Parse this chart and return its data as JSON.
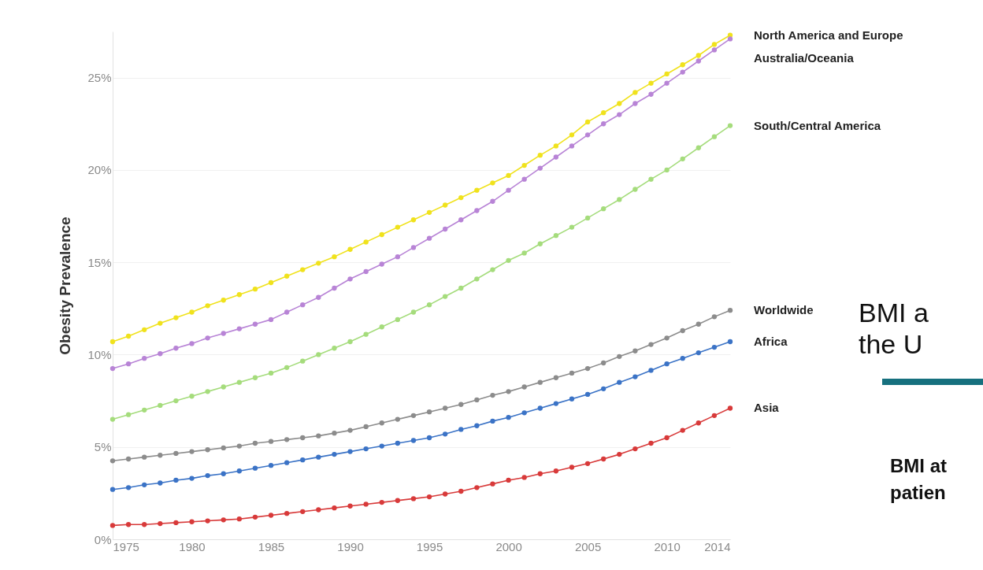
{
  "chart_data": {
    "type": "line",
    "ylabel": "Obesity Prevalence",
    "x": [
      1975,
      1976,
      1977,
      1978,
      1979,
      1980,
      1981,
      1982,
      1983,
      1984,
      1985,
      1986,
      1987,
      1988,
      1989,
      1990,
      1991,
      1992,
      1993,
      1994,
      1995,
      1996,
      1997,
      1998,
      1999,
      2000,
      2001,
      2002,
      2003,
      2004,
      2005,
      2006,
      2007,
      2008,
      2009,
      2010,
      2011,
      2012,
      2013,
      2014
    ],
    "series": [
      {
        "name": "North America and Europe",
        "color": "#f0e21c",
        "values": [
          10.7,
          11.0,
          11.35,
          11.7,
          12.0,
          12.3,
          12.65,
          12.95,
          13.25,
          13.55,
          13.9,
          14.25,
          14.6,
          14.95,
          15.3,
          15.7,
          16.1,
          16.5,
          16.9,
          17.3,
          17.7,
          18.1,
          18.5,
          18.9,
          19.3,
          19.7,
          20.25,
          20.8,
          21.3,
          21.9,
          22.6,
          23.1,
          23.6,
          24.2,
          24.7,
          25.2,
          25.7,
          26.2,
          26.8,
          27.3
        ]
      },
      {
        "name": "Australia/Oceania",
        "color": "#b884d6",
        "values": [
          9.25,
          9.5,
          9.8,
          10.05,
          10.35,
          10.6,
          10.9,
          11.15,
          11.4,
          11.65,
          11.9,
          12.3,
          12.7,
          13.1,
          13.6,
          14.1,
          14.5,
          14.9,
          15.3,
          15.8,
          16.3,
          16.8,
          17.3,
          17.8,
          18.3,
          18.9,
          19.5,
          20.1,
          20.7,
          21.3,
          21.9,
          22.5,
          23.0,
          23.6,
          24.1,
          24.7,
          25.3,
          25.9,
          26.5,
          27.1
        ]
      },
      {
        "name": "South/Central America",
        "color": "#a5dc7c",
        "values": [
          6.5,
          6.75,
          7.0,
          7.25,
          7.5,
          7.75,
          8.0,
          8.25,
          8.5,
          8.75,
          9.0,
          9.3,
          9.65,
          10.0,
          10.35,
          10.7,
          11.1,
          11.5,
          11.9,
          12.3,
          12.7,
          13.15,
          13.6,
          14.1,
          14.6,
          15.1,
          15.5,
          16.0,
          16.45,
          16.9,
          17.4,
          17.9,
          18.4,
          18.95,
          19.5,
          20.0,
          20.6,
          21.2,
          21.8,
          22.4
        ]
      },
      {
        "name": "Worldwide",
        "color": "#8c8c8c",
        "values": [
          4.25,
          4.35,
          4.45,
          4.55,
          4.65,
          4.75,
          4.85,
          4.95,
          5.05,
          5.2,
          5.3,
          5.4,
          5.5,
          5.6,
          5.75,
          5.9,
          6.1,
          6.3,
          6.5,
          6.7,
          6.9,
          7.1,
          7.3,
          7.55,
          7.8,
          8.0,
          8.25,
          8.5,
          8.75,
          9.0,
          9.25,
          9.55,
          9.9,
          10.2,
          10.55,
          10.9,
          11.3,
          11.65,
          12.05,
          12.4
        ]
      },
      {
        "name": "Africa",
        "color": "#3b73c6",
        "values": [
          2.7,
          2.8,
          2.95,
          3.05,
          3.2,
          3.3,
          3.45,
          3.55,
          3.7,
          3.85,
          4.0,
          4.15,
          4.3,
          4.45,
          4.6,
          4.75,
          4.9,
          5.05,
          5.2,
          5.35,
          5.5,
          5.7,
          5.95,
          6.15,
          6.4,
          6.6,
          6.85,
          7.1,
          7.35,
          7.6,
          7.85,
          8.15,
          8.5,
          8.8,
          9.15,
          9.5,
          9.8,
          10.1,
          10.4,
          10.7
        ]
      },
      {
        "name": "Asia",
        "color": "#d83a3a",
        "values": [
          0.75,
          0.8,
          0.8,
          0.85,
          0.9,
          0.95,
          1.0,
          1.05,
          1.1,
          1.2,
          1.3,
          1.4,
          1.5,
          1.6,
          1.7,
          1.8,
          1.9,
          2.0,
          2.1,
          2.2,
          2.3,
          2.45,
          2.6,
          2.8,
          3.0,
          3.2,
          3.35,
          3.55,
          3.7,
          3.9,
          4.1,
          4.35,
          4.6,
          4.9,
          5.2,
          5.5,
          5.9,
          6.3,
          6.7,
          7.1
        ]
      }
    ],
    "xlim": [
      1975,
      2014
    ],
    "xticks": [
      1975,
      1980,
      1985,
      1990,
      1995,
      2000,
      2005,
      2010,
      2014
    ],
    "ylim": [
      0,
      27.5
    ],
    "yticks": [
      {
        "value": 0,
        "label": "0%"
      },
      {
        "value": 5,
        "label": "5%"
      },
      {
        "value": 10,
        "label": "10%"
      },
      {
        "value": 15,
        "label": "15%"
      },
      {
        "value": 20,
        "label": "20%"
      },
      {
        "value": 25,
        "label": "25%"
      }
    ],
    "grid": "y",
    "legend": "right",
    "marker": "circle",
    "line_style": "solid",
    "annotations": [
      "BMI a",
      "the U",
      "BMI at",
      "patien"
    ]
  }
}
